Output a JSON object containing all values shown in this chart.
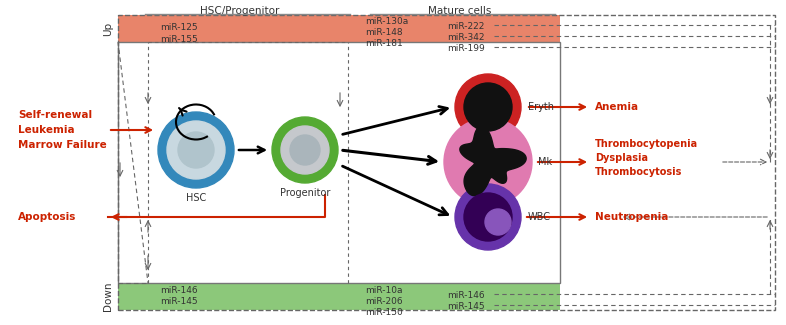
{
  "fig_width": 7.86,
  "fig_height": 3.25,
  "dpi": 100,
  "bg_color": "#ffffff",
  "salmon_color": "#e8846a",
  "green_color": "#8cc87a",
  "salmon_edge": "#d0604a",
  "green_edge": "#5a9a4a",
  "header_hsc": "HSC/Progenitor",
  "header_mature": "Mature cells",
  "up_label": "Up",
  "down_label": "Down",
  "red_color": "#cc2200",
  "dark_color": "#333333",
  "gray_color": "#888888",
  "dashed_color": "#666666"
}
